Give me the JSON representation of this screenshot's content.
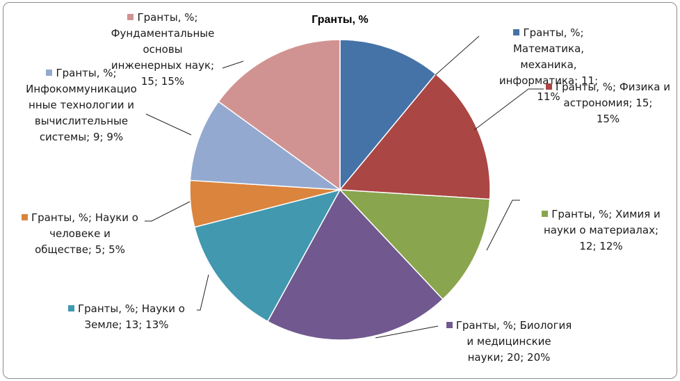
{
  "chart_data": {
    "type": "pie",
    "title": "Гранты, %",
    "series_name": "Гранты, %",
    "slices": [
      {
        "category": "Математика, механика, информатика",
        "value": 11,
        "percent": "11%",
        "color": "#4572a7"
      },
      {
        "category": "Физика и астрономия",
        "value": 15,
        "percent": "15%",
        "color": "#aa4643"
      },
      {
        "category": "Химия и науки о материалах",
        "value": 12,
        "percent": "12%",
        "color": "#89a54e"
      },
      {
        "category": "Биология и медицинские науки",
        "value": 20,
        "percent": "20%",
        "color": "#71588f"
      },
      {
        "category": "Науки о Земле",
        "value": 13,
        "percent": "13%",
        "color": "#4198af"
      },
      {
        "category": "Науки о человеке и обществе",
        "value": 5,
        "percent": "5%",
        "color": "#db843d"
      },
      {
        "category": "Инфокоммуникационные технологии и вычислительные системы",
        "value": 9,
        "percent": "9%",
        "color": "#93a9cf"
      },
      {
        "category": "Фундаментальные основы инженерных наук",
        "value": 15,
        "percent": "15%",
        "color": "#d19392"
      }
    ],
    "data_labels": [
      [
        "Гранты, %;",
        "Математика,",
        "механика,",
        "информатика; 11;",
        "11%"
      ],
      [
        "Гранты, %; Физика и",
        "астрономия; 15;",
        "15%"
      ],
      [
        "Гранты, %; Химия и",
        "науки о материалах;",
        "12; 12%"
      ],
      [
        "Гранты, %; Биология",
        "и медицинские",
        "науки; 20; 20%"
      ],
      [
        "Гранты, %; Науки о",
        "Земле; 13; 13%"
      ],
      [
        "Гранты, %; Науки о",
        "человеке и",
        "обществе; 5; 5%"
      ],
      [
        "Гранты, %;",
        "Инфокоммуникацио",
        "нные технологии и",
        "вычислительные",
        "системы; 9; 9%"
      ],
      [
        "Гранты, %;",
        "Фундаментальные",
        "основы",
        "инженерных наук;",
        "15; 15%"
      ]
    ],
    "legend": "none",
    "start_angle": "12 o'clock, clockwise"
  }
}
